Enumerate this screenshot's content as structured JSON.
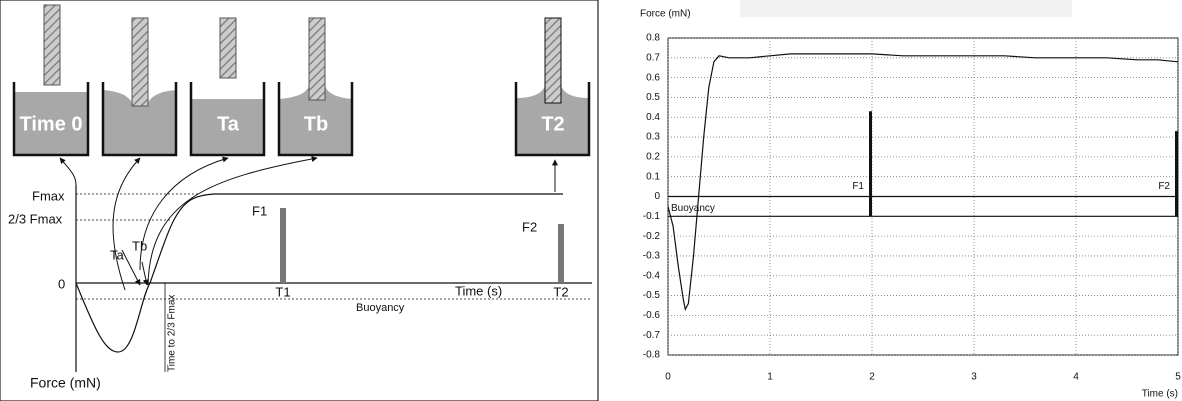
{
  "diagram": {
    "beakers": [
      "Time 0",
      "Ta",
      "Tb",
      "T2"
    ],
    "levels": [
      "Fmax",
      "2/3 Fmax",
      "0"
    ],
    "curve_labels": [
      "Ta",
      "Tb"
    ],
    "rotated_label": "Time to 2/3 Fmax",
    "bars": [
      "F1",
      "F2"
    ],
    "time_marks": [
      "T1",
      "T2"
    ],
    "axis_x": "Time (s)",
    "axis_y": "Force (mN)",
    "baseline": "Buoyancy"
  },
  "chart_data": {
    "type": "line",
    "y_label": "Force (mN)",
    "x_label": "Time (s)",
    "x": [
      0,
      0.05,
      0.1,
      0.15,
      0.17,
      0.2,
      0.25,
      0.3,
      0.35,
      0.4,
      0.45,
      0.5,
      0.6,
      0.8,
      1,
      1.2,
      1.5,
      1.8,
      2,
      2.3,
      2.6,
      3,
      3.3,
      3.6,
      4,
      4.3,
      4.6,
      4.8,
      5
    ],
    "values": [
      -0.05,
      -0.15,
      -0.35,
      -0.52,
      -0.57,
      -0.54,
      -0.3,
      0.0,
      0.3,
      0.55,
      0.68,
      0.71,
      0.7,
      0.7,
      0.71,
      0.72,
      0.72,
      0.72,
      0.72,
      0.71,
      0.71,
      0.71,
      0.71,
      0.7,
      0.7,
      0.7,
      0.69,
      0.69,
      0.68
    ],
    "color": "#111111",
    "xlim": [
      0,
      5
    ],
    "xticks": [
      0,
      1,
      2,
      3,
      4,
      5
    ],
    "ylim": [
      -0.8,
      0.8
    ],
    "yticks": [
      0.8,
      0.7,
      0.6,
      0.5,
      0.4,
      0.3,
      0.2,
      0.1,
      0,
      -0.1,
      -0.2,
      -0.3,
      -0.4,
      -0.5,
      -0.6,
      -0.7,
      -0.8
    ],
    "grid": true,
    "annotations": [
      {
        "label": "F1",
        "x": 2,
        "y_from": -0.1,
        "y_to": 0.43
      },
      {
        "label": "F2",
        "x": 5,
        "y_from": -0.1,
        "y_to": 0.33
      }
    ],
    "baseline": {
      "label": "Buoyancy",
      "y": -0.1
    }
  }
}
